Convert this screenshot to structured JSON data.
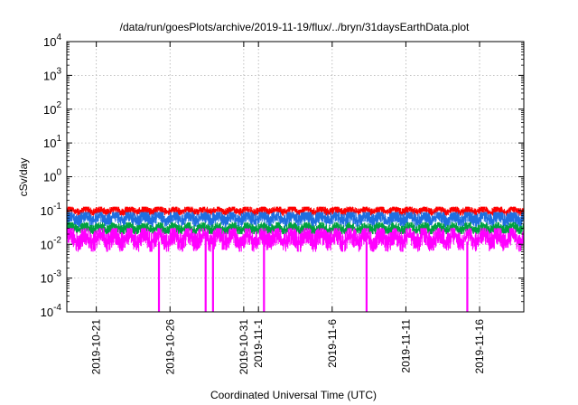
{
  "chart_data": {
    "type": "line",
    "title": "/data/run/goesPlots/archive/2019-11-19/flux/../bryn/31daysEarthData.plot",
    "xlabel": "Coordinated Universal Time (UTC)",
    "ylabel": "cSv/day",
    "yscale": "log",
    "ylim": [
      0.0001,
      10000
    ],
    "xlim": [
      "2019-10-19",
      "2019-11-19"
    ],
    "grid": true,
    "legend": "none",
    "y_ticks": [
      {
        "value": 0.0001,
        "base": "10",
        "exp": "-4"
      },
      {
        "value": 0.001,
        "base": "10",
        "exp": "-3"
      },
      {
        "value": 0.01,
        "base": "10",
        "exp": "-2"
      },
      {
        "value": 0.1,
        "base": "10",
        "exp": "-1"
      },
      {
        "value": 1,
        "base": "10",
        "exp": "0"
      },
      {
        "value": 10,
        "base": "10",
        "exp": "1"
      },
      {
        "value": 100,
        "base": "10",
        "exp": "2"
      },
      {
        "value": 1000,
        "base": "10",
        "exp": "3"
      },
      {
        "value": 10000,
        "base": "10",
        "exp": "4"
      }
    ],
    "x_ticks": [
      {
        "date": "2019-10-21",
        "label": "2019-10-21"
      },
      {
        "date": "2019-10-26",
        "label": "2019-10-26"
      },
      {
        "date": "2019-10-31",
        "label": "2019-10-31"
      },
      {
        "date": "2019-11-01",
        "label": "2019-11-1"
      },
      {
        "date": "2019-11-06",
        "label": "2019-11-6"
      },
      {
        "date": "2019-11-11",
        "label": "2019-11-11"
      },
      {
        "date": "2019-11-16",
        "label": "2019-11-16"
      }
    ],
    "series": [
      {
        "color": "#ff0000",
        "typical": 0.1,
        "min": 0.07,
        "max": 0.13
      },
      {
        "color": "#1f6fe0",
        "typical": 0.06,
        "min": 0.03,
        "max": 0.09
      },
      {
        "color": "#00a040",
        "typical": 0.03,
        "min": 0.02,
        "max": 0.045
      },
      {
        "color": "#ff00ff",
        "typical": 0.015,
        "min": 0.006,
        "max": 0.03
      }
    ],
    "dropouts": {
      "series_color": "#ff00ff",
      "value": 0.0001,
      "dates": [
        "2019-10-25T06:00",
        "2019-10-28T10:00",
        "2019-10-28T22:00",
        "2019-11-01T09:00",
        "2019-11-08T08:00",
        "2019-11-15T04:00"
      ]
    }
  }
}
